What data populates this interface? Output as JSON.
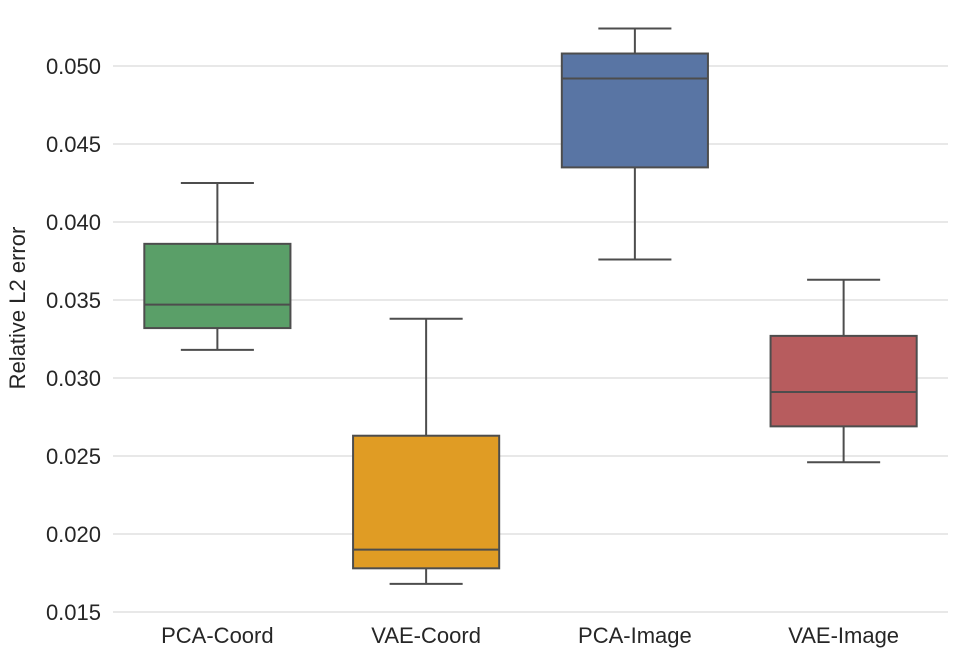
{
  "chart_data": {
    "type": "boxplot",
    "title": "",
    "xlabel": "",
    "ylabel": "Relative L2 error",
    "ylim": [
      0.015,
      0.0527
    ],
    "yticks": [
      "0.015",
      "0.020",
      "0.025",
      "0.030",
      "0.035",
      "0.040",
      "0.045",
      "0.050"
    ],
    "grid": "horizontal",
    "categories": [
      "PCA-Coord",
      "VAE-Coord",
      "PCA-Image",
      "VAE-Image"
    ],
    "series": [
      {
        "name": "PCA-Coord",
        "color": "#5a9f68",
        "whisker_low": 0.0318,
        "q1": 0.0332,
        "median": 0.0347,
        "q3": 0.0386,
        "whisker_high": 0.0425
      },
      {
        "name": "VAE-Coord",
        "color": "#e09c24",
        "whisker_low": 0.0168,
        "q1": 0.0178,
        "median": 0.019,
        "q3": 0.0263,
        "whisker_high": 0.0338
      },
      {
        "name": "PCA-Image",
        "color": "#5975a4",
        "whisker_low": 0.0376,
        "q1": 0.0435,
        "median": 0.0492,
        "q3": 0.0508,
        "whisker_high": 0.0524
      },
      {
        "name": "VAE-Image",
        "color": "#b75c5e",
        "whisker_low": 0.0246,
        "q1": 0.0269,
        "median": 0.0291,
        "q3": 0.0327,
        "whisker_high": 0.0363
      }
    ]
  }
}
